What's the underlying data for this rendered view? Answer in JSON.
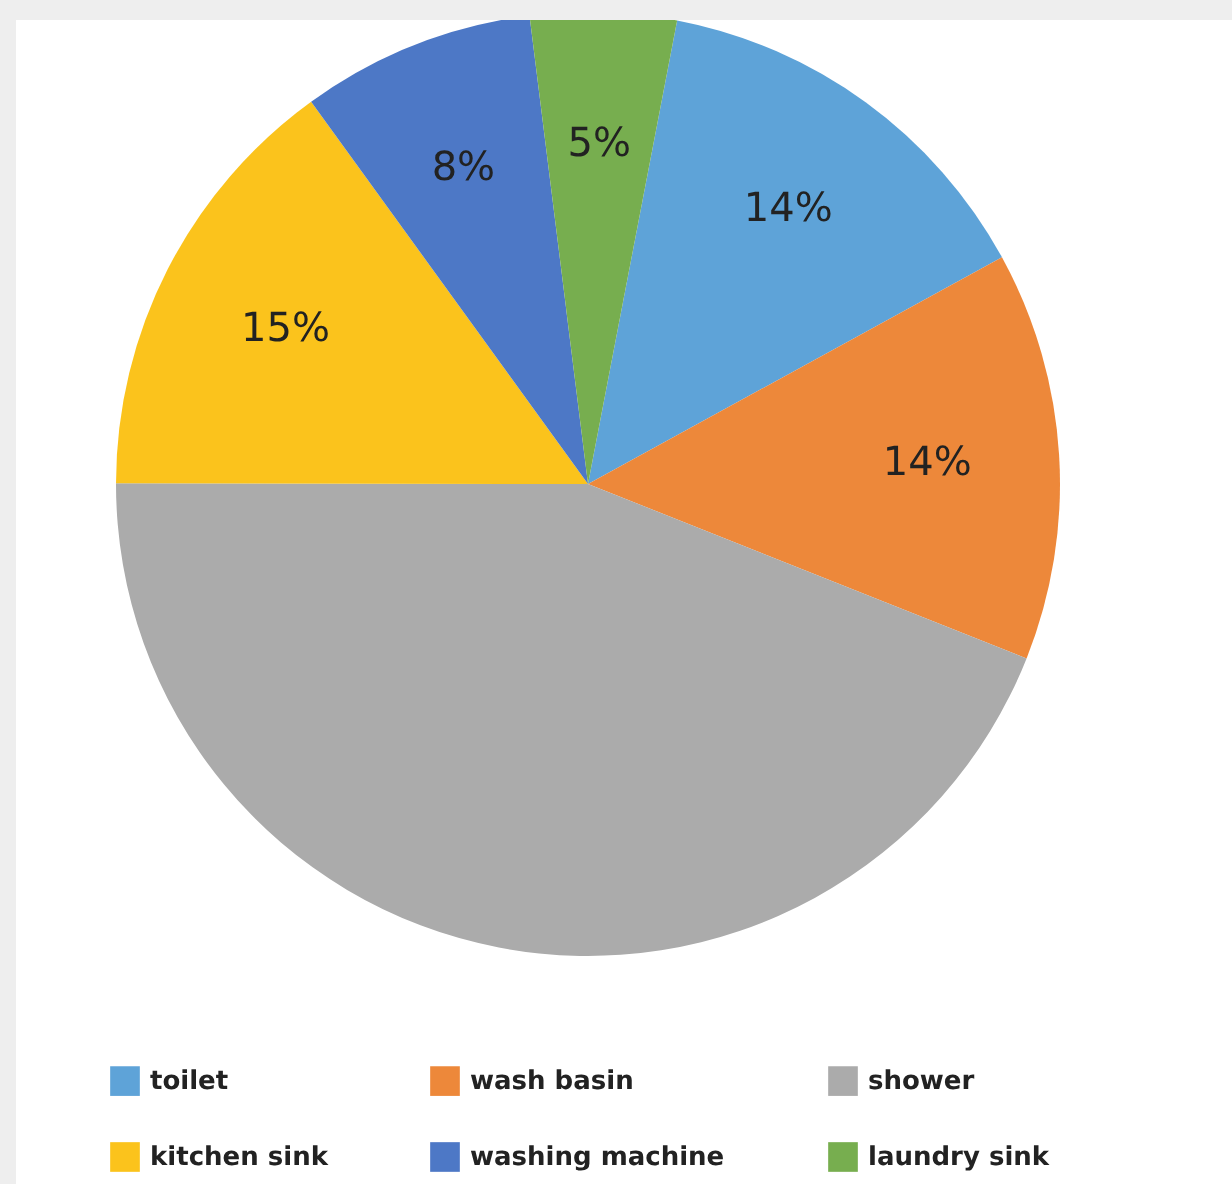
{
  "chart_data": {
    "type": "pie",
    "categories": [
      "toilet",
      "wash basin",
      "shower",
      "kitchen sink",
      "washing machine",
      "laundry sink"
    ],
    "values": [
      14,
      14,
      44,
      15,
      8,
      5
    ],
    "colors": [
      "#5ea3d8",
      "#ed883a",
      "#ababab",
      "#fbc31c",
      "#4d78c6",
      "#77ae4f"
    ],
    "value_labels": [
      "14%",
      "14%",
      null,
      "15%",
      "8%",
      "5%"
    ],
    "legend": "bottom"
  }
}
